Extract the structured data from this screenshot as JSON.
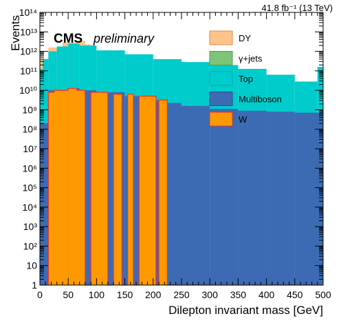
{
  "chart_data": {
    "type": "bar",
    "stacked": true,
    "title": "",
    "lumi_label": "41.8 fb⁻¹ (13 TeV)",
    "cms_label": "CMS",
    "preliminary_label": "preliminary",
    "xlabel": "Dilepton invariant mass [GeV]",
    "ylabel": "Events",
    "xlim": [
      0,
      500
    ],
    "ylim": [
      1,
      100000000000000.0
    ],
    "yscale": "log",
    "bin_width": 5,
    "x_ticks": [
      "0",
      "50",
      "100",
      "150",
      "200",
      "250",
      "300",
      "350",
      "400",
      "450",
      "500"
    ],
    "y_ticks": [
      "1",
      "10",
      "10²",
      "10³",
      "10⁴",
      "10⁵",
      "10⁶",
      "10⁷",
      "10⁸",
      "10⁹",
      "10¹⁰",
      "10¹¹",
      "10¹²",
      "10¹³",
      "10¹⁴"
    ],
    "legend_position": "top-right",
    "legend": [
      {
        "name": "DY",
        "color": "#ffc38c",
        "border": "#e08a3c"
      },
      {
        "name": "γ+jets",
        "color": "#7cc576",
        "border": "#4f9e4a"
      },
      {
        "name": "Top",
        "color": "#00cccc",
        "border": "#00aaaa"
      },
      {
        "name": "Multiboson",
        "color": "#3d6bb3",
        "border": "#2a4f8a"
      },
      {
        "name": "W",
        "color": "#ff9900",
        "border": "#e8332e"
      }
    ],
    "series_log10": {
      "W": [
        {
          "x": [
            0,
            15
          ],
          "y": 0
        },
        {
          "x": [
            15,
            25
          ],
          "y": 9.9
        },
        {
          "x": [
            25,
            50
          ],
          "y": 10.0
        },
        {
          "x": [
            50,
            65
          ],
          "y": 10.1
        },
        {
          "x": [
            65,
            80
          ],
          "y": 10.0
        },
        {
          "x": [
            80,
            90
          ],
          "y": 0
        },
        {
          "x": [
            90,
            120
          ],
          "y": 9.9
        },
        {
          "x": [
            120,
            130
          ],
          "y": 0
        },
        {
          "x": [
            130,
            145
          ],
          "y": 9.8
        },
        {
          "x": [
            145,
            155
          ],
          "y": 0
        },
        {
          "x": [
            155,
            165
          ],
          "y": 9.8
        },
        {
          "x": [
            165,
            175
          ],
          "y": 0
        },
        {
          "x": [
            175,
            205
          ],
          "y": 9.7
        },
        {
          "x": [
            205,
            210
          ],
          "y": 0
        },
        {
          "x": [
            210,
            225
          ],
          "y": 9.5
        },
        {
          "x": [
            225,
            500
          ],
          "y": 0
        }
      ],
      "Multiboson": [
        {
          "x": [
            0,
            15
          ],
          "y": 8.3
        },
        {
          "x": [
            15,
            50
          ],
          "y": 10.0
        },
        {
          "x": [
            50,
            70
          ],
          "y": 10.1
        },
        {
          "x": [
            70,
            100
          ],
          "y": 10.0
        },
        {
          "x": [
            100,
            150
          ],
          "y": 9.9
        },
        {
          "x": [
            150,
            200
          ],
          "y": 9.7
        },
        {
          "x": [
            200,
            225
          ],
          "y": 9.5
        },
        {
          "x": [
            225,
            250
          ],
          "y": 9.35
        },
        {
          "x": [
            250,
            300
          ],
          "y": 9.2
        },
        {
          "x": [
            300,
            350
          ],
          "y": 9.05
        },
        {
          "x": [
            350,
            400
          ],
          "y": 8.95
        },
        {
          "x": [
            400,
            450
          ],
          "y": 8.9
        },
        {
          "x": [
            450,
            500
          ],
          "y": 8.85
        }
      ],
      "Top": [
        {
          "x": [
            0,
            5
          ],
          "y": 11.1
        },
        {
          "x": [
            5,
            15
          ],
          "y": 11.6
        },
        {
          "x": [
            15,
            30
          ],
          "y": 12.0
        },
        {
          "x": [
            30,
            50
          ],
          "y": 12.25
        },
        {
          "x": [
            50,
            70
          ],
          "y": 12.4
        },
        {
          "x": [
            70,
            100
          ],
          "y": 12.3
        },
        {
          "x": [
            100,
            150
          ],
          "y": 12.05
        },
        {
          "x": [
            150,
            200
          ],
          "y": 11.85
        },
        {
          "x": [
            200,
            250
          ],
          "y": 11.6
        },
        {
          "x": [
            250,
            300
          ],
          "y": 11.45
        },
        {
          "x": [
            300,
            350
          ],
          "y": 11.3
        },
        {
          "x": [
            350,
            400
          ],
          "y": 11.1
        },
        {
          "x": [
            400,
            450
          ],
          "y": 10.8
        },
        {
          "x": [
            450,
            490
          ],
          "y": 10.45
        },
        {
          "x": [
            490,
            500
          ],
          "y": 11.2
        }
      ],
      "DY": [
        {
          "x": [
            0,
            15
          ],
          "y": 11.6
        },
        {
          "x": [
            15,
            40
          ],
          "y": 12.2
        },
        {
          "x": [
            40,
            65
          ],
          "y": 12.45
        },
        {
          "x": [
            65,
            80
          ],
          "y": 12.55
        },
        {
          "x": [
            80,
            90
          ],
          "y": 12.35
        },
        {
          "x": [
            90,
            500
          ],
          "y": 0
        }
      ]
    }
  }
}
